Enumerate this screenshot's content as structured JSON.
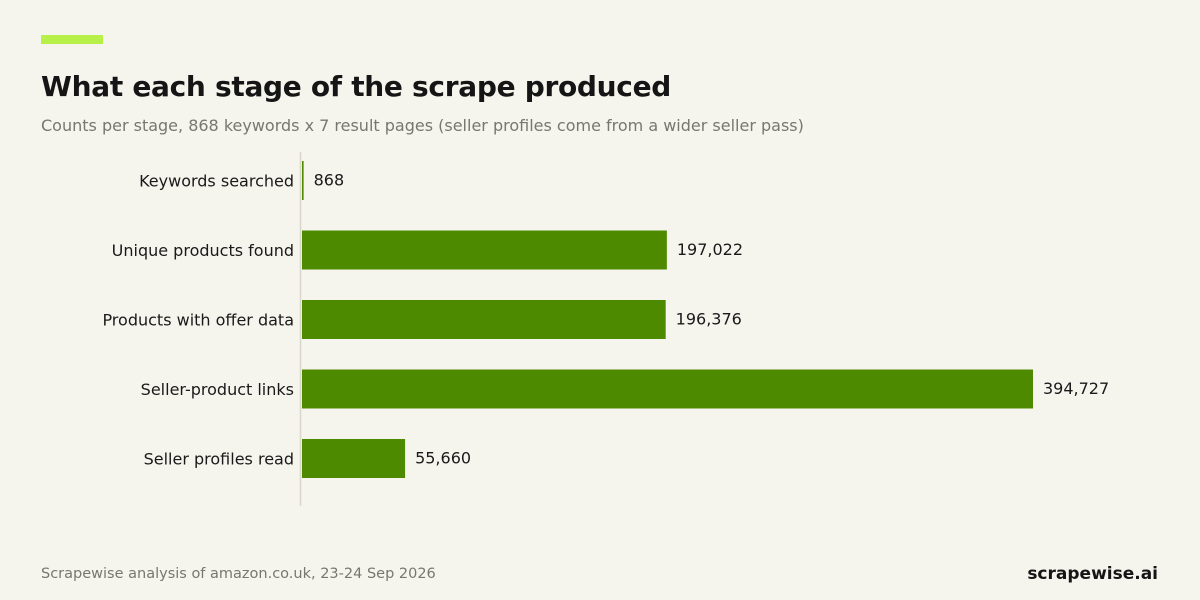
{
  "header": {
    "title": "What each stage of the scrape produced",
    "subtitle": "Counts per stage, 868 keywords x 7 result pages (seller profiles come from a wider seller pass)"
  },
  "footer": {
    "source": "Scrapewise analysis of amazon.co.uk, 23-24 Sep 2026",
    "brand": "scrapewise.ai"
  },
  "colors": {
    "background": "#f5f4ed",
    "accent": "#b8f04a",
    "bar": "#4e8a00",
    "axis": "#d9d7cc"
  },
  "chart_data": {
    "type": "bar",
    "orientation": "horizontal",
    "categories": [
      "Keywords searched",
      "Unique products found",
      "Products with offer data",
      "Seller-product links",
      "Seller profiles read"
    ],
    "values": [
      868,
      197022,
      196376,
      394727,
      55660
    ],
    "value_labels": [
      "868",
      "197,022",
      "196,376",
      "394,727",
      "55,660"
    ],
    "xlim": [
      0,
      394727
    ],
    "grid": false,
    "legend": "none"
  }
}
